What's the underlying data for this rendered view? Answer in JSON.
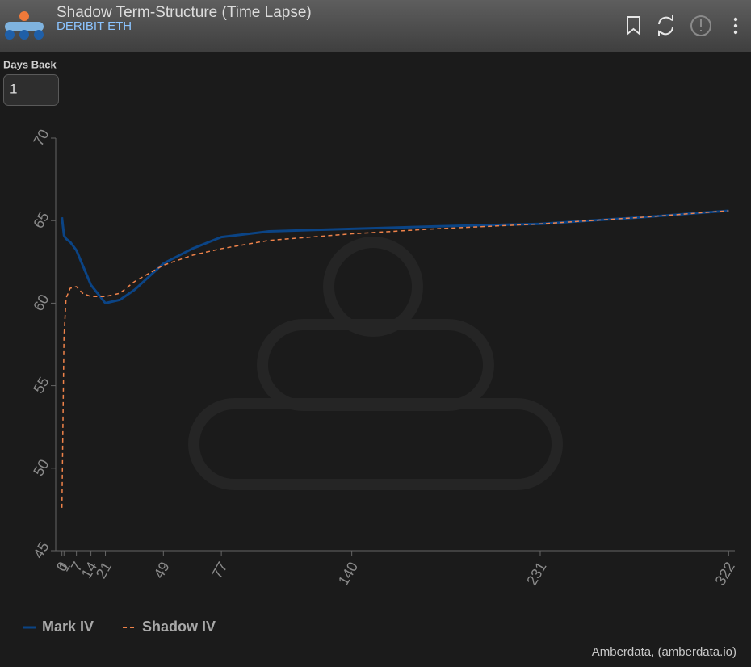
{
  "header": {
    "title": "Shadow Term-Structure (Time Lapse)",
    "subtitle": "DERIBIT ETH"
  },
  "controls": {
    "days_back_label": "Days Back",
    "days_back_value": "1"
  },
  "footer": {
    "credit": "Amberdata, (amberdata.io)"
  },
  "chart_data": {
    "type": "line",
    "x": [
      0,
      1,
      2,
      4,
      7,
      10,
      14,
      21,
      28,
      35,
      49,
      63,
      77,
      100,
      140,
      180,
      231,
      280,
      322
    ],
    "series": [
      {
        "name": "Mark IV",
        "color": "#0b4485",
        "dash": false,
        "values": [
          65.2,
          64.1,
          63.9,
          63.7,
          63.2,
          62.3,
          61.1,
          60.0,
          60.2,
          60.8,
          62.4,
          63.3,
          64.0,
          64.35,
          64.5,
          64.65,
          64.8,
          65.2,
          65.6
        ]
      },
      {
        "name": "Shadow IV",
        "color": "#f0834a",
        "dash": true,
        "values": [
          47.6,
          58.0,
          60.3,
          60.9,
          61.0,
          60.6,
          60.4,
          60.4,
          60.6,
          61.3,
          62.3,
          62.9,
          63.3,
          63.8,
          64.2,
          64.5,
          64.8,
          65.2,
          65.6
        ]
      }
    ],
    "xlim": [
      -3,
      325
    ],
    "ylim": [
      45,
      70
    ],
    "xticks": [
      0,
      1,
      7,
      14,
      21,
      49,
      77,
      140,
      231,
      322
    ],
    "yticks": [
      45,
      50,
      55,
      60,
      65,
      70
    ],
    "legend": "bottom-left"
  }
}
